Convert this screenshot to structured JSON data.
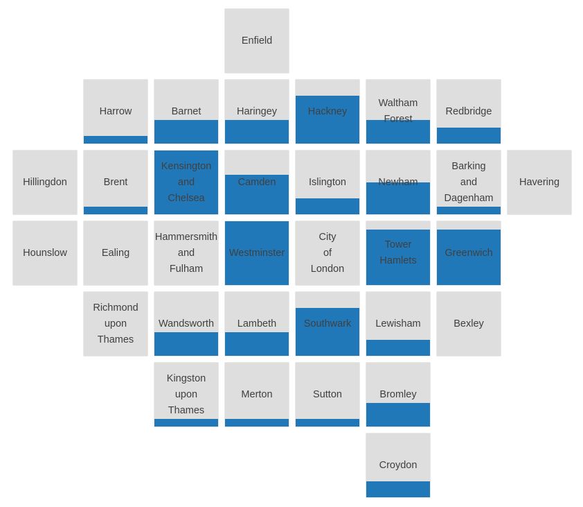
{
  "chart_data": {
    "type": "tile-map",
    "fill_color": "#2178b8",
    "tile_color": "#dedede",
    "text_color": "#404040",
    "tiles": [
      {
        "name": "Enfield",
        "value": 0.0
      },
      {
        "name": "Harrow",
        "value": 0.12
      },
      {
        "name": "Barnet",
        "value": 0.37
      },
      {
        "name": "Haringey",
        "value": 0.37
      },
      {
        "name": "Hackney",
        "value": 0.75
      },
      {
        "name": "Waltham\nForest",
        "value": 0.37
      },
      {
        "name": "Redbridge",
        "value": 0.25
      },
      {
        "name": "Hillingdon",
        "value": 0.0
      },
      {
        "name": "Brent",
        "value": 0.12
      },
      {
        "name": "Kensington\nand\nChelsea",
        "value": 1.0
      },
      {
        "name": "Camden",
        "value": 0.62
      },
      {
        "name": "Islington",
        "value": 0.25
      },
      {
        "name": "Newham",
        "value": 0.5
      },
      {
        "name": "Barking\nand\nDagenham",
        "value": 0.12
      },
      {
        "name": "Havering",
        "value": 0.0
      },
      {
        "name": "Hounslow",
        "value": 0.0
      },
      {
        "name": "Ealing",
        "value": 0.0
      },
      {
        "name": "Hammersmith\nand\nFulham",
        "value": 0.0
      },
      {
        "name": "Westminster",
        "value": 1.0
      },
      {
        "name": "City\nof\nLondon",
        "value": 0.0
      },
      {
        "name": "Tower\nHamlets",
        "value": 0.87
      },
      {
        "name": "Greenwich",
        "value": 0.87
      },
      {
        "name": "Richmond\nupon\nThames",
        "value": 0.0
      },
      {
        "name": "Wandsworth",
        "value": 0.37
      },
      {
        "name": "Lambeth",
        "value": 0.37
      },
      {
        "name": "Southwark",
        "value": 0.75
      },
      {
        "name": "Lewisham",
        "value": 0.25
      },
      {
        "name": "Bexley",
        "value": 0.0
      },
      {
        "name": "Kingston\nupon\nThames",
        "value": 0.12
      },
      {
        "name": "Merton",
        "value": 0.12
      },
      {
        "name": "Sutton",
        "value": 0.12
      },
      {
        "name": "Bromley",
        "value": 0.37
      },
      {
        "name": "Croydon",
        "value": 0.25
      }
    ]
  }
}
